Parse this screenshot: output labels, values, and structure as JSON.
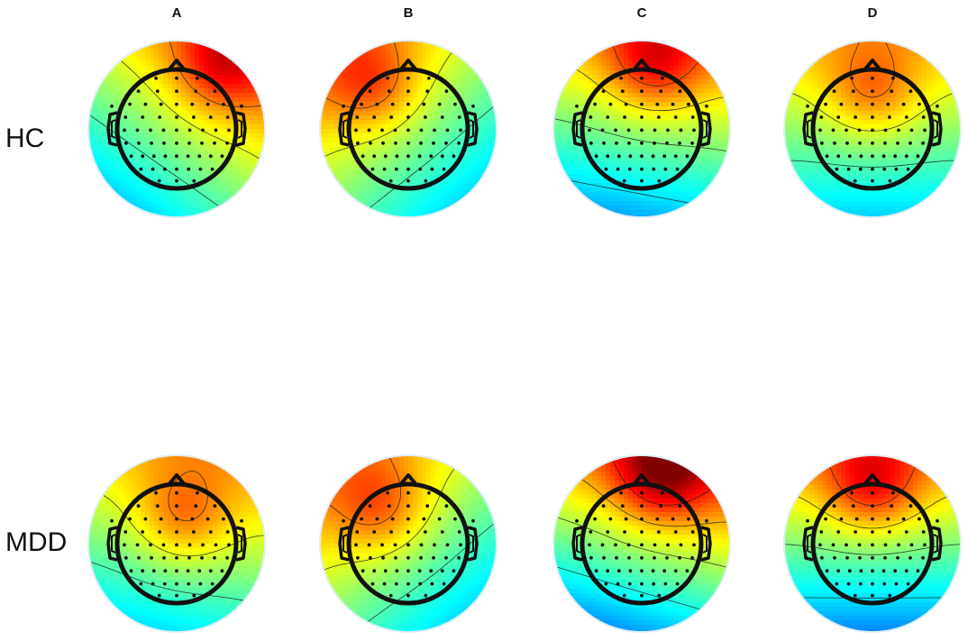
{
  "columns": [
    "A",
    "B",
    "C",
    "D"
  ],
  "rows": [
    "HC",
    "MDD"
  ],
  "maps": [
    [
      {
        "cx": 0.55,
        "cy": -0.78,
        "amp": 0.7,
        "t": 0.28,
        "cont": [
          -0.7,
          -0.4,
          -0.1,
          0.2,
          0.5
        ]
      },
      {
        "cx": -0.45,
        "cy": -0.55,
        "amp": 0.62,
        "t": 0.18,
        "cont": [
          -0.7,
          -0.4,
          -0.1,
          0.2,
          0.5
        ]
      },
      {
        "cx": 0.15,
        "cy": -0.8,
        "amp": 0.76,
        "t": 0.1,
        "cont": [
          -0.6,
          -0.3,
          0,
          0.3,
          0.6
        ]
      },
      {
        "cx": 0.0,
        "cy": -0.45,
        "amp": 0.62,
        "t": 0.1,
        "cont": [
          -0.7,
          -0.4,
          -0.1,
          0.2,
          0.5
        ]
      }
    ],
    [
      {
        "cx": 0.08,
        "cy": -0.32,
        "amp": 0.62,
        "t": 0.2,
        "cont": [
          -0.7,
          -0.4,
          -0.1,
          0.2,
          0.5
        ]
      },
      {
        "cx": -0.35,
        "cy": -0.45,
        "amp": 0.62,
        "t": 0.18,
        "cont": [
          -0.7,
          -0.4,
          -0.1,
          0.2,
          0.5
        ]
      },
      {
        "cx": 0.25,
        "cy": -0.85,
        "amp": 0.92,
        "t": 0.3,
        "cont": [
          -0.8,
          -0.5,
          -0.2,
          0.1,
          0.4,
          0.7
        ]
      },
      {
        "cx": 0.0,
        "cy": -0.7,
        "amp": 0.82,
        "t": 0.0,
        "cont": [
          -0.6,
          -0.3,
          0,
          0.3,
          0.6
        ]
      }
    ]
  ]
}
